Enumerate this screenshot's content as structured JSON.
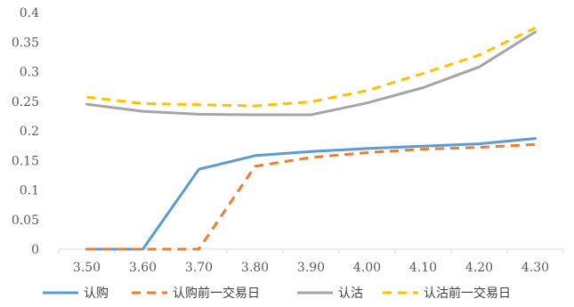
{
  "chart_data": {
    "type": "line",
    "x": [
      "3.50",
      "3.60",
      "3.70",
      "3.80",
      "3.90",
      "4.00",
      "4.10",
      "4.20",
      "4.30"
    ],
    "ylim": [
      0,
      0.4
    ],
    "y_ticks": [
      "0",
      "0.05",
      "0.1",
      "0.15",
      "0.2",
      "0.25",
      "0.3",
      "0.35",
      "0.4"
    ],
    "grid": false,
    "legend_position": "bottom",
    "series": [
      {
        "name": "认购",
        "values": [
          0.0,
          0.0,
          0.135,
          0.158,
          0.165,
          0.17,
          0.174,
          0.178,
          0.187
        ],
        "color": "#5B9BD5",
        "dash": "solid"
      },
      {
        "name": "认购前一交易日",
        "values": [
          0.0,
          0.0,
          0.0,
          0.14,
          0.155,
          0.163,
          0.169,
          0.172,
          0.177
        ],
        "color": "#ED7D31",
        "dash": "dashed"
      },
      {
        "name": "认沽",
        "values": [
          0.245,
          0.233,
          0.228,
          0.227,
          0.227,
          0.247,
          0.273,
          0.308,
          0.367
        ],
        "color": "#A5A5A5",
        "dash": "solid"
      },
      {
        "name": "认沽前一交易日",
        "values": [
          0.257,
          0.246,
          0.244,
          0.242,
          0.249,
          0.268,
          0.297,
          0.328,
          0.374
        ],
        "color": "#FFC000",
        "dash": "dashed"
      }
    ]
  }
}
